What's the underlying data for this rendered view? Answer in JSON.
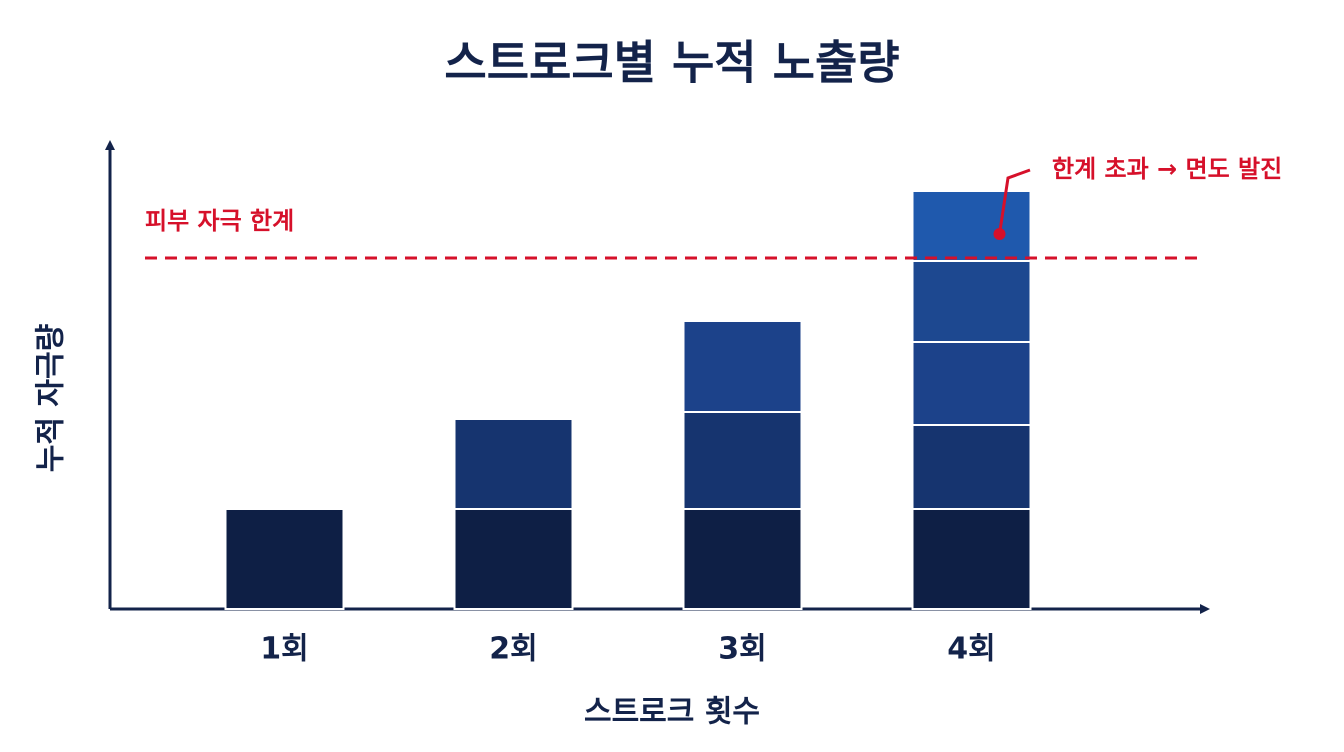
{
  "chart_data": {
    "type": "stacked_bar",
    "title": "스트로크별 누적 노출량",
    "x_label": "스트로크 횟수",
    "y_label": "누적 자극량",
    "categories": [
      "1회",
      "2회",
      "3회",
      "4회"
    ],
    "series": [
      {
        "color": "#0e1f45",
        "values": [
          1,
          1,
          1,
          1
        ]
      },
      {
        "color": "#16346f",
        "values": [
          null,
          0.9,
          0.97,
          0.84
        ]
      },
      {
        "color": "#1c428a",
        "values": [
          null,
          null,
          0.91,
          0.83
        ]
      },
      {
        "color": "#1d4890",
        "values": [
          null,
          null,
          null,
          0.81
        ]
      },
      {
        "color": "#1f59ad",
        "values": [
          null,
          null,
          null,
          0.7
        ]
      }
    ],
    "ylim": [
      0,
      4.64
    ],
    "threshold": {
      "value": 3.51,
      "label": "피부 자극 한계",
      "color": "#d6102a"
    },
    "annotation": "한계 초과 → 면도 발진"
  }
}
